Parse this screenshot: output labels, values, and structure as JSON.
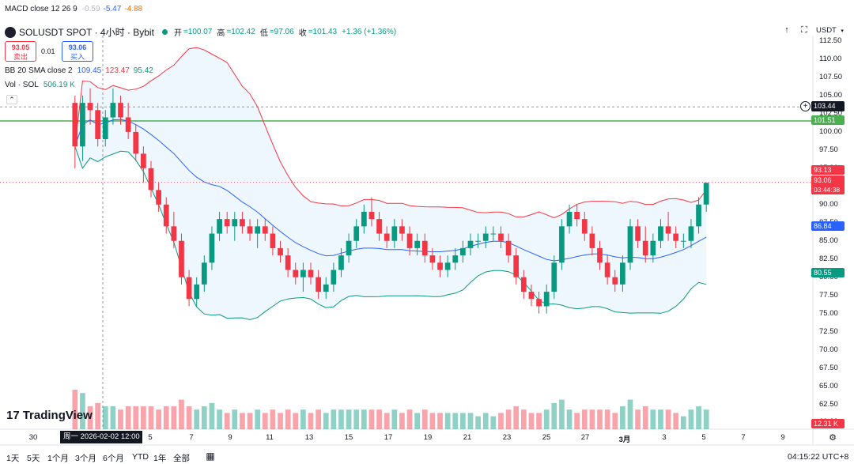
{
  "macd": {
    "label": "MACD close 12 26 9",
    "v1": "-0.59",
    "v2": "-5.47",
    "v3": "-4.88"
  },
  "header": {
    "title": "SOLUSDT SPOT · 4小时 · Bybit",
    "open_label": "开",
    "open": "=100.07",
    "high_label": "高",
    "high": "=102.42",
    "low_label": "低",
    "low": "=97.06",
    "close_label": "收",
    "close": "=101.43",
    "change": "+1.36 (+1.36%)"
  },
  "trade": {
    "sell_price": "93.05",
    "sell_label": "卖出",
    "spread": "0.01",
    "buy_price": "93.06",
    "buy_label": "买入"
  },
  "bb": {
    "label": "BB 20 SMA close 2",
    "basis": "109.45",
    "upper": "123.47",
    "lower": "95.42"
  },
  "vol": {
    "label": "Vol · SOL",
    "value": "506.19 K"
  },
  "currency": "USDT",
  "price_axis": [
    "112.50",
    "110.00",
    "107.50",
    "105.00",
    "102.50",
    "100.00",
    "97.50",
    "95.00",
    "92.50",
    "90.00",
    "87.50",
    "85.00",
    "82.50",
    "80.00",
    "77.50",
    "75.00",
    "72.50",
    "70.00",
    "67.50",
    "65.00",
    "62.50",
    "60.00"
  ],
  "price_labels": {
    "crosshair": "103.44",
    "green_line": "101.51",
    "bb_upper": "93.13",
    "last_price": "93.06",
    "countdown": "03:44:38",
    "bb_basis": "86.84",
    "bb_lower": "80.55",
    "volume": "12.31 K"
  },
  "x_axis": [
    "30",
    "5",
    "7",
    "9",
    "11",
    "13",
    "15",
    "17",
    "19",
    "21",
    "23",
    "25",
    "27",
    "3月",
    "3",
    "5",
    "7",
    "9"
  ],
  "crosshair_date": "周一 2026-02-02   12:00",
  "timeframes": [
    "1天",
    "5天",
    "1个月",
    "3个月",
    "6个月",
    "YTD",
    "1年",
    "全部"
  ],
  "clock": "04:15:22 UTC+8",
  "logo_text": "TradingView",
  "colors": {
    "up": "#089981",
    "down": "#f23645",
    "bb_upper": "#f23645",
    "bb_lower": "#089981",
    "bb_basis": "#2962ff",
    "green_line": "#4caf50"
  },
  "chart_data": {
    "type": "candlestick",
    "series": [
      {
        "name": "SOLUSDT",
        "values": [
          [
            104,
            105,
            95,
            98
          ],
          [
            98,
            105,
            96,
            104
          ],
          [
            104,
            106,
            101,
            103
          ],
          [
            103,
            104,
            98,
            99
          ],
          [
            99,
            103,
            98,
            102
          ],
          [
            102,
            106,
            101,
            104
          ],
          [
            104,
            105,
            101,
            102
          ],
          [
            102,
            104,
            99,
            100
          ],
          [
            100,
            101,
            96,
            97
          ],
          [
            97,
            98,
            93,
            95
          ],
          [
            95,
            96,
            91,
            92
          ],
          [
            92,
            93,
            89,
            90
          ],
          [
            90,
            91,
            86,
            87
          ],
          [
            87,
            89,
            84,
            85
          ],
          [
            85,
            86,
            79,
            80
          ],
          [
            80,
            81,
            76,
            77
          ],
          [
            77,
            80,
            76,
            79
          ],
          [
            79,
            83,
            78,
            82
          ],
          [
            82,
            87,
            81,
            86
          ],
          [
            86,
            89,
            85,
            88
          ],
          [
            88,
            89,
            86,
            87
          ],
          [
            87,
            89,
            85,
            88
          ],
          [
            88,
            89,
            86,
            87
          ],
          [
            87,
            88,
            85,
            86
          ],
          [
            86,
            88,
            84,
            87
          ],
          [
            87,
            88,
            85,
            86
          ],
          [
            86,
            87,
            83,
            84
          ],
          [
            84,
            85,
            82,
            83
          ],
          [
            83,
            84,
            80,
            81
          ],
          [
            81,
            82,
            79,
            80
          ],
          [
            80,
            82,
            78,
            81
          ],
          [
            81,
            82,
            79,
            80
          ],
          [
            80,
            81,
            77,
            78
          ],
          [
            78,
            80,
            77,
            79
          ],
          [
            79,
            82,
            78,
            81
          ],
          [
            81,
            84,
            80,
            83
          ],
          [
            83,
            86,
            82,
            85
          ],
          [
            85,
            88,
            84,
            87
          ],
          [
            87,
            90,
            86,
            89
          ],
          [
            89,
            91,
            87,
            88
          ],
          [
            88,
            89,
            85,
            86
          ],
          [
            86,
            87,
            84,
            85
          ],
          [
            85,
            88,
            84,
            87
          ],
          [
            87,
            88,
            85,
            86
          ],
          [
            86,
            87,
            83,
            84
          ],
          [
            84,
            86,
            83,
            85
          ],
          [
            85,
            86,
            82,
            83
          ],
          [
            83,
            84,
            81,
            82
          ],
          [
            82,
            83,
            80,
            81
          ],
          [
            81,
            83,
            80,
            82
          ],
          [
            82,
            84,
            81,
            83
          ],
          [
            83,
            85,
            82,
            84
          ],
          [
            84,
            86,
            83,
            85
          ],
          [
            85,
            86,
            84,
            85
          ],
          [
            85,
            87,
            84,
            86
          ],
          [
            86,
            87,
            85,
            86
          ],
          [
            86,
            87,
            84,
            85
          ],
          [
            85,
            86,
            82,
            83
          ],
          [
            83,
            84,
            79,
            80
          ],
          [
            80,
            81,
            77,
            78
          ],
          [
            78,
            79,
            76,
            77
          ],
          [
            77,
            78,
            75,
            76
          ],
          [
            76,
            79,
            75,
            78
          ],
          [
            78,
            83,
            77,
            82
          ],
          [
            82,
            88,
            81,
            87
          ],
          [
            87,
            90,
            86,
            89
          ],
          [
            89,
            90,
            87,
            88
          ],
          [
            88,
            89,
            85,
            86
          ],
          [
            86,
            87,
            83,
            84
          ],
          [
            84,
            85,
            81,
            82
          ],
          [
            82,
            83,
            79,
            80
          ],
          [
            80,
            81,
            78,
            79
          ],
          [
            79,
            83,
            78,
            82
          ],
          [
            82,
            88,
            81,
            87
          ],
          [
            87,
            88,
            84,
            85
          ],
          [
            85,
            87,
            82,
            83
          ],
          [
            83,
            86,
            82,
            85
          ],
          [
            85,
            88,
            84,
            87
          ],
          [
            87,
            89,
            85,
            86
          ],
          [
            86,
            87,
            84,
            85
          ],
          [
            85,
            86,
            84,
            85
          ],
          [
            85,
            88,
            84,
            87
          ],
          [
            87,
            91,
            86,
            90
          ],
          [
            90,
            93,
            89,
            93
          ]
        ]
      }
    ],
    "volume_scale_label": "12.31 K",
    "ylim": [
      60,
      113
    ]
  }
}
